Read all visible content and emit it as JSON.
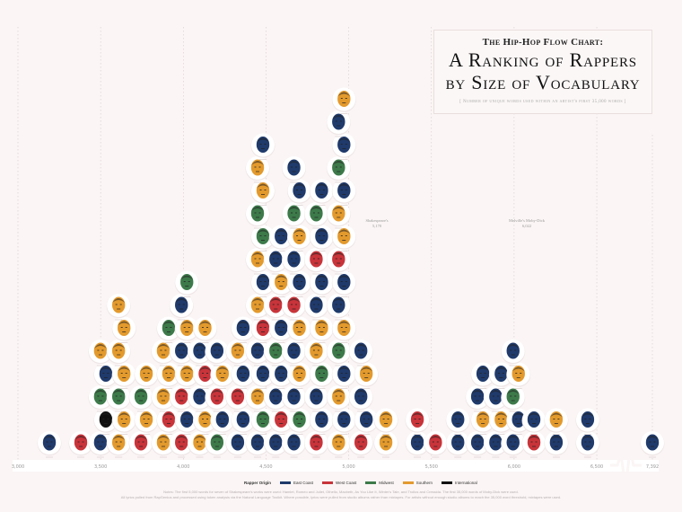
{
  "title": {
    "line1": "The Hip-Hop Flow Chart:",
    "line2": "A Ranking of Rappers",
    "line3": "by Size of Vocabulary",
    "subtitle": "[ Number of unique words used within an artist's first 35,000 words ]"
  },
  "chart_data": {
    "type": "scatter",
    "title": "A Ranking of Rappers by Size of Vocabulary",
    "xlabel": "",
    "ylabel": "",
    "x_ticks": [
      "3,000",
      "3,500",
      "4,000",
      "4,500",
      "5,000",
      "5,500",
      "6,000",
      "6,500",
      "7,392"
    ],
    "xlim": [
      3000,
      6700
    ],
    "axis_break_after": 6700,
    "outlier": {
      "vocab": 7392,
      "region": "E"
    },
    "grid": true,
    "columns": [
      {
        "vocab": 3190,
        "regions": "E"
      },
      {
        "vocab": 3380,
        "regions": "W"
      },
      {
        "vocab": 3515,
        "regions": "EIMES"
      },
      {
        "vocab": 3625,
        "regions": "SSMSSSS"
      },
      {
        "vocab": 3760,
        "regions": "WSMS"
      },
      {
        "vocab": 3895,
        "regions": "SWSSSM"
      },
      {
        "vocab": 4005,
        "regions": "WEWSESEM"
      },
      {
        "vocab": 4115,
        "regions": "SSEWES"
      },
      {
        "vocab": 4220,
        "regions": "MEWSE"
      },
      {
        "vocab": 4345,
        "regions": "EEWESE"
      },
      {
        "vocab": 4465,
        "regions": "EMSEEWSESMMSSE"
      },
      {
        "vocab": 4575,
        "regions": "EWEEMEWSEE"
      },
      {
        "vocab": 4685,
        "regions": "EMESESWEESMEE"
      },
      {
        "vocab": 4820,
        "regions": "WEEMSSEEWEME"
      },
      {
        "vocab": 4955,
        "regions": "SESEMSEEWSSEMEES"
      },
      {
        "vocab": 5090,
        "regions": "WEESE"
      },
      {
        "vocab": 5225,
        "regions": "SS"
      },
      {
        "vocab": 5415,
        "regions": "EW"
      },
      {
        "vocab": 5525,
        "regions": "W"
      },
      {
        "vocab": 5660,
        "regions": "EE"
      },
      {
        "vocab": 5795,
        "regions": "ESEE"
      },
      {
        "vocab": 5905,
        "regions": "ESEE"
      },
      {
        "vocab": 6010,
        "regions": "EEMSE"
      },
      {
        "vocab": 6120,
        "regions": "WE"
      },
      {
        "vocab": 6255,
        "regions": "ES"
      },
      {
        "vocab": 6445,
        "regions": "EE"
      }
    ],
    "annotations": [
      {
        "label": "Shakespeare's",
        "value": "5,170"
      },
      {
        "label": "Melville's Moby-Dick",
        "value": "6,022"
      }
    ]
  },
  "legend": {
    "title": "Rapper Origin",
    "items": [
      {
        "code": "E",
        "label": "East Coast",
        "color": "#1f3a6b"
      },
      {
        "code": "W",
        "label": "West Coast",
        "color": "#c8343a"
      },
      {
        "code": "M",
        "label": "Midwest",
        "color": "#3d7a4a"
      },
      {
        "code": "S",
        "label": "Southern",
        "color": "#e39a2d"
      },
      {
        "code": "I",
        "label": "International",
        "color": "#111111"
      }
    ]
  },
  "notes": {
    "line1": "Notes: The first 5,000 words for seven of Shakespeare's works were used: Hamlet, Romeo and Juliet, Othello, Macbeth, As You Like It, Winter's Tale, and Troilus and Cressida. The first 35,000 words of Moby-Dick were used.",
    "line2": "All lyrics pulled from RapGenius and processed using token analysis via the Natural Language Toolkit. Where possible, lyrics were pulled from studio albums rather than mixtapes. For artists without enough studio albums to reach the 35,000 word threshold, mixtapes were used."
  }
}
